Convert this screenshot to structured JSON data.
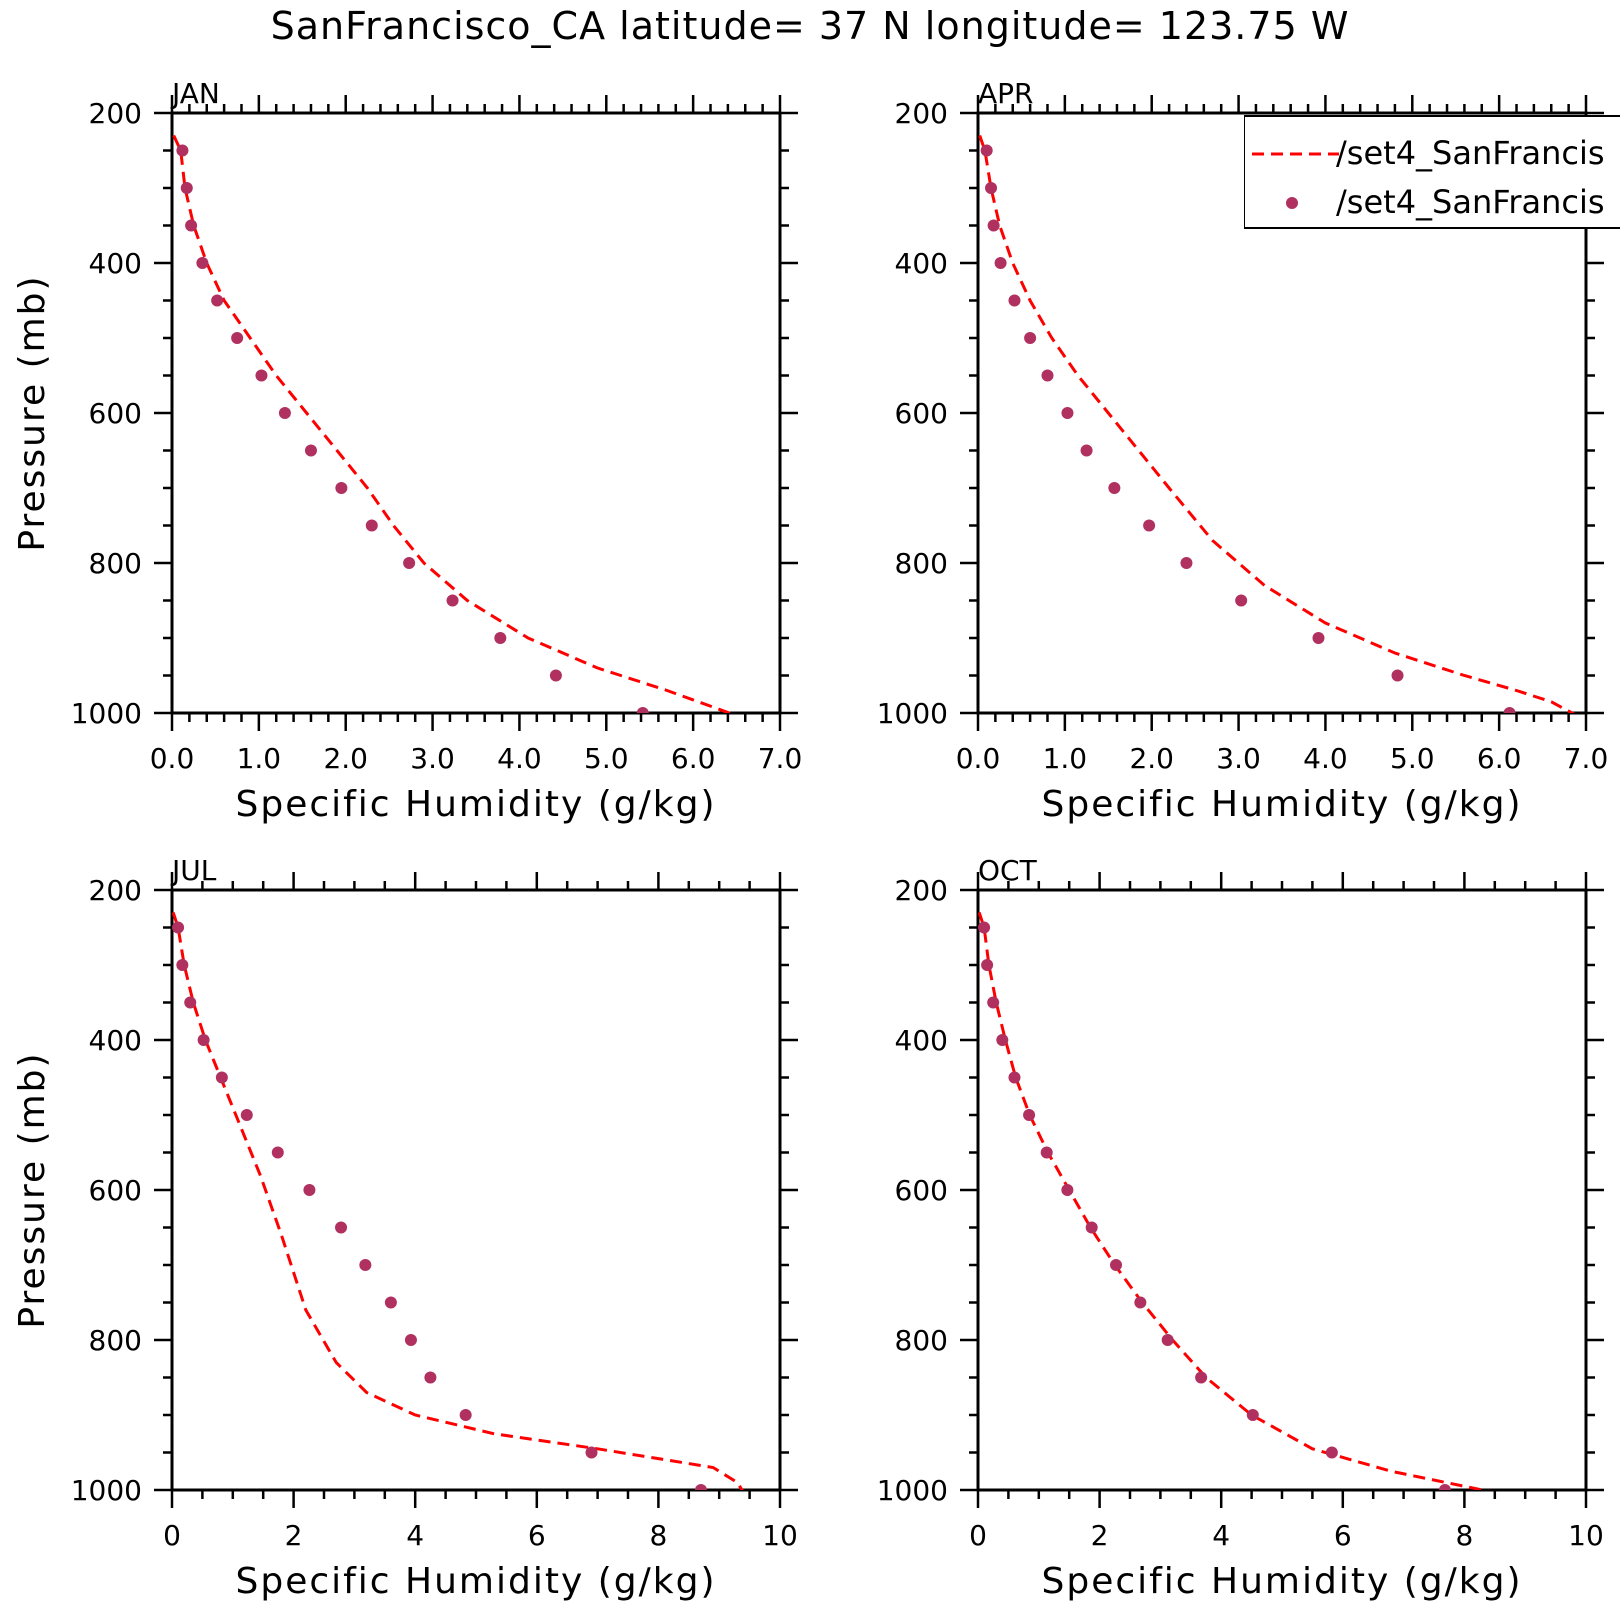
{
  "title": "SanFrancisco_CA  latitude= 37 N longitude= 123.75 W",
  "legend": {
    "placement": "top-right of APR panel",
    "entries": [
      {
        "label": "/set4_SanFrancis",
        "style": "dashed-line",
        "color": "#ff0000"
      },
      {
        "label": "/set4_SanFrancis",
        "style": "marker",
        "color": "#b03060"
      }
    ]
  },
  "colors": {
    "line": "#ff0000",
    "marker": "#b03060"
  },
  "chart_data": [
    {
      "type": "line",
      "panel": "JAN",
      "title": "JAN",
      "xlabel": "Specific Humidity (g/kg)",
      "ylabel": "Pressure (mb)",
      "xlim": [
        0,
        7
      ],
      "ylim": [
        1000,
        200
      ],
      "y_axis": "pressure (mb), increasing downward",
      "xticks": [
        "0.0",
        "1.0",
        "2.0",
        "3.0",
        "4.0",
        "5.0",
        "6.0",
        "7.0"
      ],
      "yticks": [
        "200",
        "400",
        "600",
        "800",
        "1000"
      ],
      "series": [
        {
          "style": "dashed-line",
          "x": [
            0.02,
            0.1,
            0.15,
            0.25,
            0.4,
            0.6,
            0.9,
            1.2,
            1.55,
            1.9,
            2.25,
            2.55,
            2.9,
            3.4,
            4.1,
            4.9,
            5.7,
            6.3,
            6.7
          ],
          "y": [
            230,
            250,
            300,
            350,
            400,
            450,
            500,
            550,
            600,
            650,
            700,
            750,
            800,
            850,
            900,
            940,
            970,
            995,
            1012
          ]
        },
        {
          "style": "marker",
          "x": [
            0.12,
            0.17,
            0.22,
            0.35,
            0.52,
            0.75,
            1.03,
            1.3,
            1.6,
            1.95,
            2.3,
            2.73,
            3.23,
            3.78,
            4.42,
            5.42
          ],
          "y": [
            250,
            300,
            350,
            400,
            450,
            500,
            550,
            600,
            650,
            700,
            750,
            800,
            850,
            900,
            950,
            1000
          ]
        }
      ]
    },
    {
      "type": "line",
      "panel": "APR",
      "title": "APR",
      "xlabel": "Specific Humidity (g/kg)",
      "ylabel": "",
      "xlim": [
        0,
        7
      ],
      "ylim": [
        1000,
        200
      ],
      "y_axis": "pressure (mb), increasing downward",
      "xticks": [
        "0.0",
        "1.0",
        "2.0",
        "3.0",
        "4.0",
        "5.0",
        "6.0",
        "7.0"
      ],
      "yticks": [
        "200",
        "400",
        "600",
        "800",
        "1000"
      ],
      "series": [
        {
          "style": "dashed-line",
          "x": [
            0.02,
            0.08,
            0.15,
            0.25,
            0.4,
            0.6,
            0.85,
            1.15,
            1.5,
            1.85,
            2.2,
            2.7,
            3.3,
            4.0,
            4.8,
            5.6,
            6.2,
            6.6,
            7.0
          ],
          "y": [
            230,
            250,
            300,
            350,
            400,
            450,
            500,
            550,
            600,
            650,
            700,
            770,
            830,
            880,
            920,
            950,
            970,
            985,
            1010
          ]
        },
        {
          "style": "marker",
          "x": [
            0.1,
            0.15,
            0.18,
            0.26,
            0.42,
            0.6,
            0.8,
            1.03,
            1.25,
            1.57,
            1.97,
            2.4,
            3.03,
            3.92,
            4.83,
            6.12
          ],
          "y": [
            250,
            300,
            350,
            400,
            450,
            500,
            550,
            600,
            650,
            700,
            750,
            800,
            850,
            900,
            950,
            1000
          ]
        }
      ]
    },
    {
      "type": "line",
      "panel": "JUL",
      "title": "JUL",
      "xlabel": "Specific Humidity (g/kg)",
      "ylabel": "Pressure (mb)",
      "xlim": [
        0,
        10
      ],
      "ylim": [
        1000,
        200
      ],
      "y_axis": "pressure (mb), increasing downward",
      "xticks": [
        "0",
        "2",
        "4",
        "6",
        "8",
        "10"
      ],
      "yticks": [
        "200",
        "400",
        "600",
        "800",
        "1000"
      ],
      "series": [
        {
          "style": "dashed-line",
          "x": [
            0.02,
            0.1,
            0.2,
            0.35,
            0.55,
            0.8,
            1.1,
            1.45,
            1.8,
            2.2,
            2.7,
            3.2,
            4.0,
            5.3,
            7.0,
            8.9,
            9.3,
            9.45
          ],
          "y": [
            230,
            250,
            300,
            350,
            400,
            450,
            510,
            580,
            660,
            760,
            830,
            870,
            900,
            925,
            945,
            970,
            990,
            1010
          ]
        },
        {
          "style": "marker",
          "x": [
            0.1,
            0.17,
            0.3,
            0.52,
            0.82,
            1.23,
            1.74,
            2.26,
            2.78,
            3.18,
            3.6,
            3.93,
            4.25,
            4.83,
            6.9,
            8.7
          ],
          "y": [
            250,
            300,
            350,
            400,
            450,
            500,
            550,
            600,
            650,
            700,
            750,
            800,
            850,
            900,
            950,
            1000
          ]
        }
      ]
    },
    {
      "type": "line",
      "panel": "OCT",
      "title": "OCT",
      "xlabel": "Specific Humidity (g/kg)",
      "ylabel": "",
      "xlim": [
        0,
        10
      ],
      "ylim": [
        1000,
        200
      ],
      "y_axis": "pressure (mb), increasing downward",
      "xticks": [
        "0",
        "2",
        "4",
        "6",
        "8",
        "10"
      ],
      "yticks": [
        "200",
        "400",
        "600",
        "800",
        "1000"
      ],
      "series": [
        {
          "style": "dashed-line",
          "x": [
            0.02,
            0.1,
            0.18,
            0.3,
            0.45,
            0.62,
            0.85,
            1.15,
            1.5,
            1.85,
            2.25,
            2.7,
            3.2,
            3.75,
            4.5,
            5.5,
            6.8,
            8.0,
            8.9
          ],
          "y": [
            230,
            250,
            300,
            350,
            400,
            450,
            500,
            550,
            600,
            650,
            700,
            750,
            800,
            850,
            900,
            945,
            975,
            995,
            1010
          ]
        },
        {
          "style": "marker",
          "x": [
            0.1,
            0.15,
            0.25,
            0.4,
            0.6,
            0.84,
            1.13,
            1.47,
            1.87,
            2.27,
            2.67,
            3.12,
            3.67,
            4.52,
            5.82,
            7.68
          ],
          "y": [
            250,
            300,
            350,
            400,
            450,
            500,
            550,
            600,
            650,
            700,
            750,
            800,
            850,
            900,
            950,
            1000
          ]
        }
      ]
    }
  ]
}
